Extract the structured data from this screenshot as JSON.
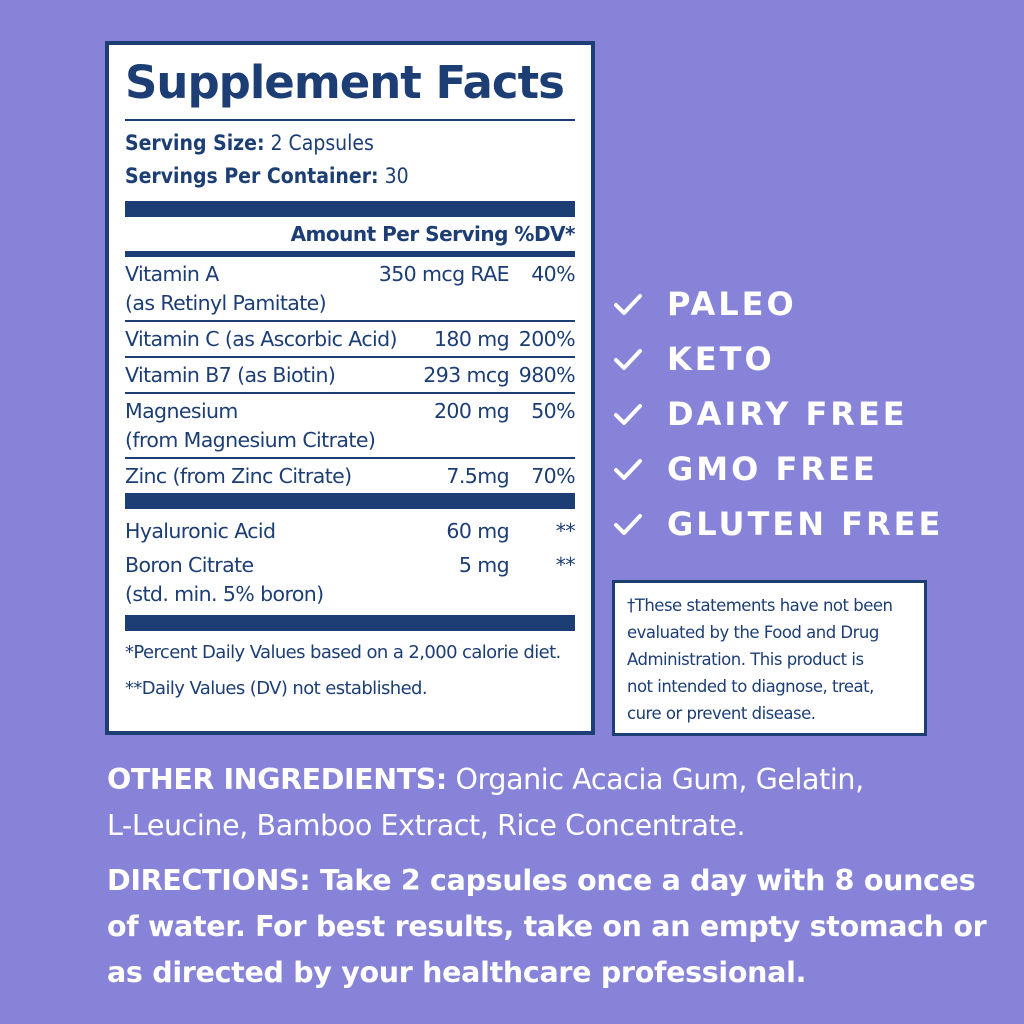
{
  "colors": {
    "background": "#8783d8",
    "label_blue": "#1c3e74",
    "white": "#ffffff"
  },
  "facts": {
    "title": "Supplement Facts",
    "serving_size_label": "Serving Size:",
    "serving_size_value": "2 Capsules",
    "servings_per_container_label": "Servings Per Container:",
    "servings_per_container_value": "30",
    "amount_header": "Amount Per Serving %DV*",
    "nutrients": [
      {
        "name": "Vitamin A",
        "sub": "(as Retinyl Pamitate)",
        "amount": "350 mcg RAE",
        "dv": "40%"
      },
      {
        "name": "Vitamin C (as Ascorbic Acid)",
        "amount": "180 mg",
        "dv": "200%"
      },
      {
        "name": "Vitamin B7 (as Biotin)",
        "amount": "293 mcg",
        "dv": "980%"
      },
      {
        "name": "Magnesium",
        "sub": "(from Magnesium Citrate)",
        "amount": "200 mg",
        "dv": "50%"
      },
      {
        "name": "Zinc (from Zinc Citrate)",
        "amount": "7.5mg",
        "dv": "70%"
      }
    ],
    "others": [
      {
        "name": "Hyaluronic Acid",
        "amount": "60 mg",
        "dv": "**"
      },
      {
        "name": "Boron Citrate",
        "sub": "(std. min. 5% boron)",
        "amount": "5 mg",
        "dv": "**"
      }
    ],
    "footnote_1": "*Percent Daily Values based on a 2,000 calorie diet.",
    "footnote_2": "**Daily Values (DV) not established."
  },
  "claims": [
    {
      "label": "PALEO",
      "icon": "check-icon"
    },
    {
      "label": "KETO",
      "icon": "check-icon"
    },
    {
      "label": "DAIRY FREE",
      "icon": "check-icon"
    },
    {
      "label": "GMO FREE",
      "icon": "check-icon"
    },
    {
      "label": "GLUTEN FREE",
      "icon": "check-icon"
    }
  ],
  "disclaimer": {
    "lines": [
      "†These statements have not been",
      "evaluated by the Food and Drug",
      "Administration. This product is",
      "not intended to diagnose, treat,",
      "cure or prevent disease."
    ]
  },
  "other_ingredients": {
    "label": "OTHER INGREDIENTS:",
    "text_line1": " Organic Acacia Gum, Gelatin,",
    "text_line2": "L-Leucine, Bamboo Extract, Rice Concentrate."
  },
  "directions": {
    "lines": [
      "DIRECTIONS: Take 2 capsules once a day with 8 ounces",
      "of water. For best results, take on an empty stomach or",
      "as directed by your healthcare professional."
    ]
  }
}
